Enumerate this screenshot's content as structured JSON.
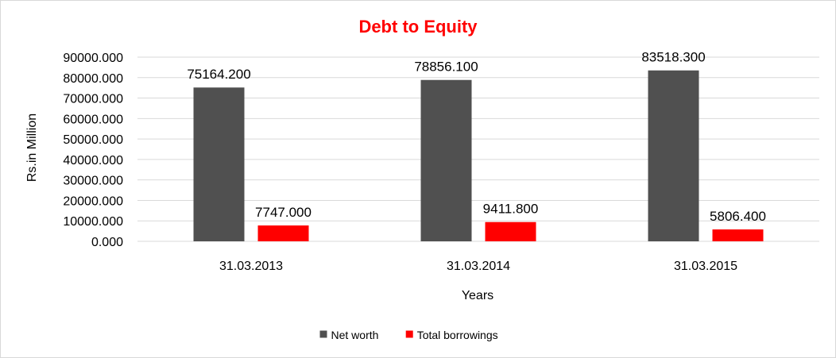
{
  "chart_data": {
    "type": "bar",
    "title": "Debt to Equity",
    "xlabel": "Years",
    "ylabel": "Rs.in Million",
    "categories": [
      "31.03.2013",
      "31.03.2014",
      "31.03.2015"
    ],
    "series": [
      {
        "name": "Net worth",
        "values": [
          75164.2,
          78856.1,
          83518.3
        ],
        "labels": [
          "75164.200",
          "78856.100",
          "83518.300"
        ],
        "color": "#505050"
      },
      {
        "name": "Total borrowings",
        "values": [
          7747.0,
          9411.8,
          5806.4
        ],
        "labels": [
          "7747.000",
          "9411.800",
          "5806.400"
        ],
        "color": "#ff0000"
      }
    ],
    "ylim": [
      0,
      90000
    ],
    "yticks": [
      0,
      10000,
      20000,
      30000,
      40000,
      50000,
      60000,
      70000,
      80000,
      90000
    ],
    "ytick_labels": [
      "0.000",
      "10000.000",
      "20000.000",
      "30000.000",
      "40000.000",
      "50000.000",
      "60000.000",
      "70000.000",
      "80000.000",
      "90000.000"
    ],
    "grid": true,
    "legend_position": "bottom",
    "title_color": "#ff0000",
    "grid_color": "#d9d9d9"
  }
}
